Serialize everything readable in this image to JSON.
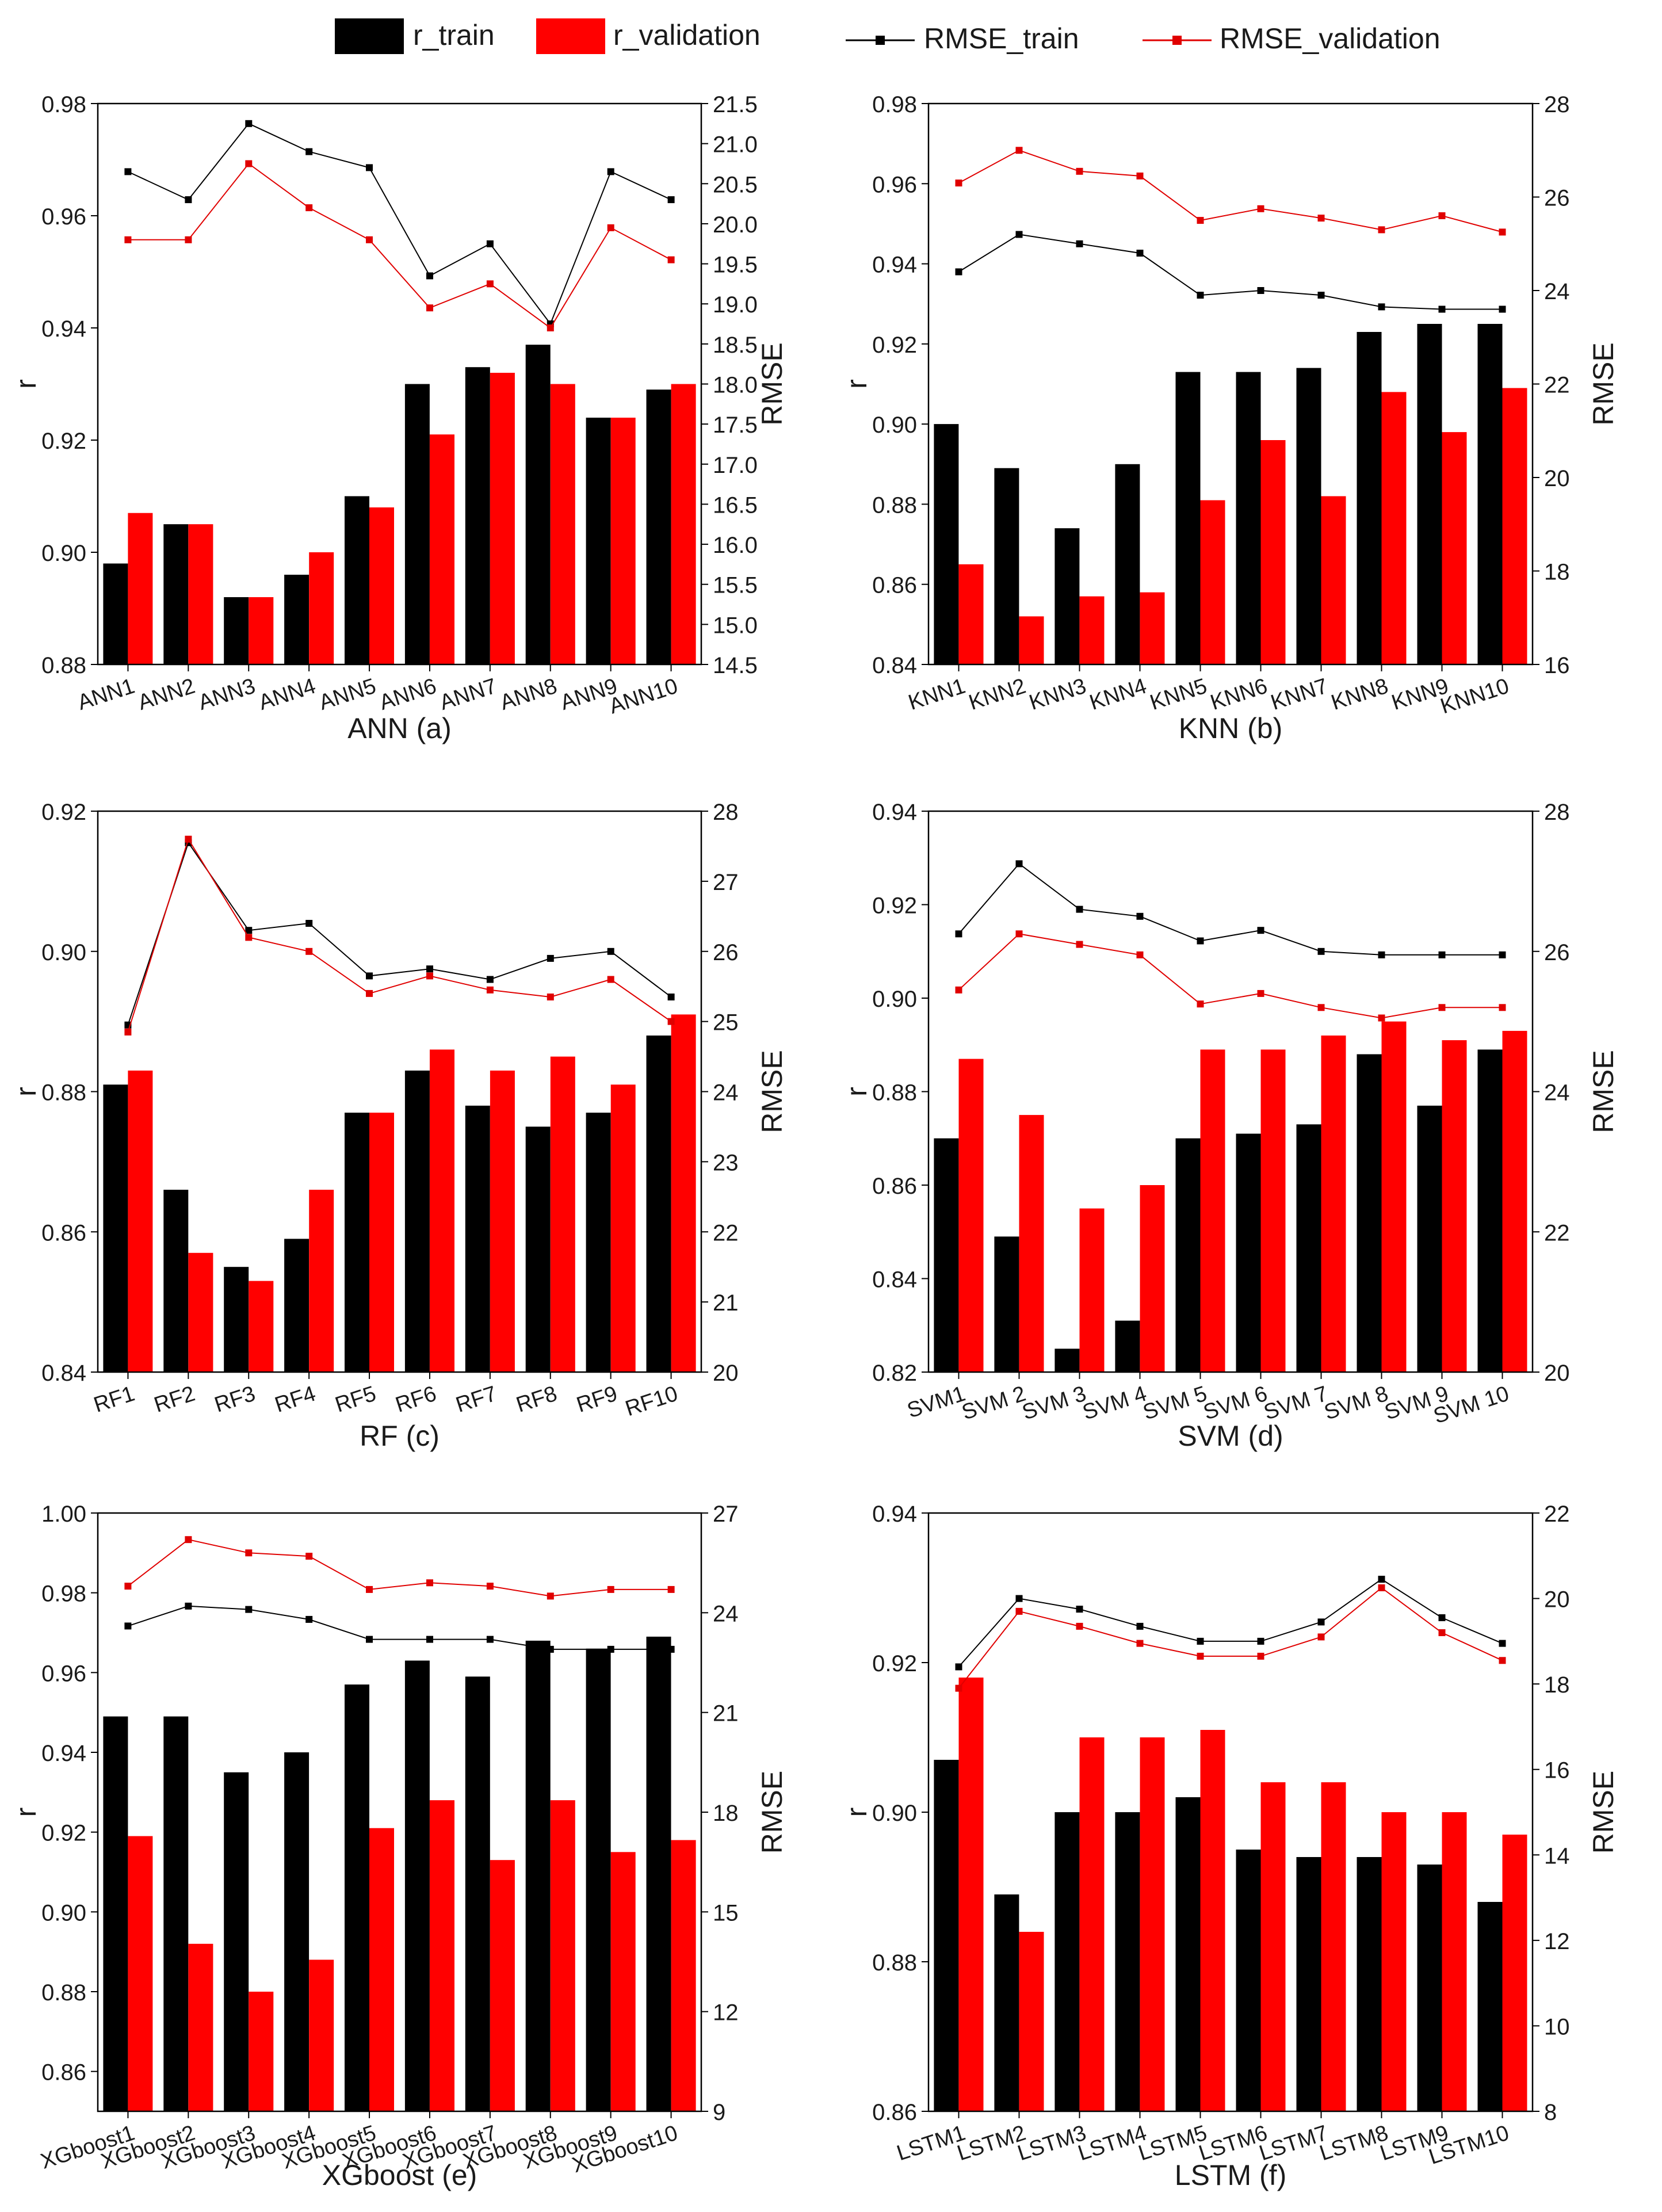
{
  "legend": {
    "items": [
      {
        "label": "r_train",
        "kind": "bar",
        "color": "#000000"
      },
      {
        "label": "r_validation",
        "kind": "bar",
        "color": "#ff0000"
      },
      {
        "label": "RMSE_train",
        "kind": "line",
        "color": "#000000"
      },
      {
        "label": "RMSE_validation",
        "kind": "line",
        "color": "#e00000"
      }
    ]
  },
  "colors": {
    "train": "#000000",
    "validation": "#ff0000",
    "rmse_train": "#000000",
    "rmse_validation": "#e00000"
  },
  "chart_data": [
    {
      "type": "bar",
      "title": "ANN (a)",
      "ylabel": "r",
      "y2label": "RMSE",
      "categories": [
        "ANN1",
        "ANN2",
        "ANN3",
        "ANN4",
        "ANN5",
        "ANN6",
        "ANN7",
        "ANN8",
        "ANN9",
        "ANN10"
      ],
      "ylim": [
        0.88,
        0.98
      ],
      "yticks": [
        0.88,
        0.9,
        0.92,
        0.94,
        0.96,
        0.98
      ],
      "ytick_labels": [
        "0.88",
        "0.90",
        "0.92",
        "0.94",
        "0.96",
        "0.98"
      ],
      "y2lim": [
        14.5,
        21.5
      ],
      "y2ticks": [
        14.5,
        15.0,
        15.5,
        16.0,
        16.5,
        17.0,
        17.5,
        18.0,
        18.5,
        19.0,
        19.5,
        20.0,
        20.5,
        21.0,
        21.5
      ],
      "y2tick_labels": [
        "14.5",
        "15.0",
        "15.5",
        "16.0",
        "16.5",
        "17.0",
        "17.5",
        "18.0",
        "18.5",
        "19.0",
        "19.5",
        "20.0",
        "20.5",
        "21.0",
        "21.5"
      ],
      "series": [
        {
          "name": "r_train",
          "kind": "bar",
          "values": [
            0.898,
            0.905,
            0.892,
            0.896,
            0.91,
            0.93,
            0.933,
            0.937,
            0.924,
            0.929
          ]
        },
        {
          "name": "r_validation",
          "kind": "bar",
          "values": [
            0.907,
            0.905,
            0.892,
            0.9,
            0.908,
            0.921,
            0.932,
            0.93,
            0.924,
            0.93
          ]
        },
        {
          "name": "RMSE_train",
          "kind": "line",
          "axis": "right",
          "values": [
            20.65,
            20.3,
            21.25,
            20.9,
            20.7,
            19.35,
            19.75,
            18.75,
            20.65,
            20.3
          ]
        },
        {
          "name": "RMSE_validation",
          "kind": "line",
          "axis": "right",
          "values": [
            19.8,
            19.8,
            20.75,
            20.2,
            19.8,
            18.95,
            19.25,
            18.7,
            19.95,
            19.55
          ]
        }
      ]
    },
    {
      "type": "bar",
      "title": "KNN (b)",
      "ylabel": "r",
      "y2label": "RMSE",
      "categories": [
        "KNN1",
        "KNN2",
        "KNN3",
        "KNN4",
        "KNN5",
        "KNN6",
        "KNN7",
        "KNN8",
        "KNN9",
        "KNN10"
      ],
      "ylim": [
        0.84,
        0.98
      ],
      "yticks": [
        0.84,
        0.86,
        0.88,
        0.9,
        0.92,
        0.94,
        0.96,
        0.98
      ],
      "ytick_labels": [
        "0.84",
        "0.86",
        "0.88",
        "0.90",
        "0.92",
        "0.94",
        "0.96",
        "0.98"
      ],
      "y2lim": [
        16,
        28
      ],
      "y2ticks": [
        16,
        18,
        20,
        22,
        24,
        26,
        28
      ],
      "y2tick_labels": [
        "16",
        "18",
        "20",
        "22",
        "24",
        "26",
        "28"
      ],
      "series": [
        {
          "name": "r_train",
          "kind": "bar",
          "values": [
            0.9,
            0.889,
            0.874,
            0.89,
            0.913,
            0.913,
            0.914,
            0.923,
            0.925,
            0.925
          ]
        },
        {
          "name": "r_validation",
          "kind": "bar",
          "values": [
            0.865,
            0.852,
            0.857,
            0.858,
            0.881,
            0.896,
            0.882,
            0.908,
            0.898,
            0.909
          ]
        },
        {
          "name": "RMSE_train",
          "kind": "line",
          "axis": "right",
          "values": [
            24.4,
            25.2,
            25.0,
            24.8,
            23.9,
            24.0,
            23.9,
            23.65,
            23.6,
            23.6
          ]
        },
        {
          "name": "RMSE_validation",
          "kind": "line",
          "axis": "right",
          "values": [
            26.3,
            27.0,
            26.55,
            26.45,
            25.5,
            25.75,
            25.55,
            25.3,
            25.6,
            25.25
          ]
        }
      ]
    },
    {
      "type": "bar",
      "title": "RF (c)",
      "ylabel": "r",
      "y2label": "RMSE",
      "categories": [
        "RF1",
        "RF2",
        "RF3",
        "RF4",
        "RF5",
        "RF6",
        "RF7",
        "RF8",
        "RF9",
        "RF10"
      ],
      "ylim": [
        0.84,
        0.92
      ],
      "yticks": [
        0.84,
        0.86,
        0.88,
        0.9,
        0.92
      ],
      "ytick_labels": [
        "0.84",
        "0.86",
        "0.88",
        "0.90",
        "0.92"
      ],
      "y2lim": [
        20,
        28
      ],
      "y2ticks": [
        20,
        21,
        22,
        23,
        24,
        25,
        26,
        27,
        28
      ],
      "y2tick_labels": [
        "20",
        "21",
        "22",
        "23",
        "24",
        "25",
        "26",
        "27",
        "28"
      ],
      "series": [
        {
          "name": "r_train",
          "kind": "bar",
          "values": [
            0.881,
            0.866,
            0.855,
            0.859,
            0.877,
            0.883,
            0.878,
            0.875,
            0.877,
            0.888
          ]
        },
        {
          "name": "r_validation",
          "kind": "bar",
          "values": [
            0.883,
            0.857,
            0.853,
            0.866,
            0.877,
            0.886,
            0.883,
            0.885,
            0.881,
            0.891
          ]
        },
        {
          "name": "RMSE_train",
          "kind": "line",
          "axis": "right",
          "values": [
            24.95,
            27.55,
            26.3,
            26.4,
            25.65,
            25.75,
            25.6,
            25.9,
            26.0,
            25.35
          ]
        },
        {
          "name": "RMSE_validation",
          "kind": "line",
          "axis": "right",
          "values": [
            24.85,
            27.6,
            26.2,
            26.0,
            25.4,
            25.65,
            25.45,
            25.35,
            25.6,
            25.0
          ]
        }
      ]
    },
    {
      "type": "bar",
      "title": "SVM (d)",
      "ylabel": "r",
      "y2label": "RMSE",
      "categories": [
        "SVM1",
        "SVM 2",
        "SVM 3",
        "SVM 4",
        "SVM 5",
        "SVM 6",
        "SVM 7",
        "SVM 8",
        "SVM 9",
        "SVM 10"
      ],
      "ylim": [
        0.82,
        0.94
      ],
      "yticks": [
        0.82,
        0.84,
        0.86,
        0.88,
        0.9,
        0.92,
        0.94
      ],
      "ytick_labels": [
        "0.82",
        "0.84",
        "0.86",
        "0.88",
        "0.90",
        "0.92",
        "0.94"
      ],
      "y2lim": [
        20,
        28
      ],
      "y2ticks": [
        20,
        22,
        24,
        26,
        28
      ],
      "y2tick_labels": [
        "20",
        "22",
        "24",
        "26",
        "28"
      ],
      "series": [
        {
          "name": "r_train",
          "kind": "bar",
          "values": [
            0.87,
            0.849,
            0.825,
            0.831,
            0.87,
            0.871,
            0.873,
            0.888,
            0.877,
            0.889
          ]
        },
        {
          "name": "r_validation",
          "kind": "bar",
          "values": [
            0.887,
            0.875,
            0.855,
            0.86,
            0.889,
            0.889,
            0.892,
            0.895,
            0.891,
            0.893
          ]
        },
        {
          "name": "RMSE_train",
          "kind": "line",
          "axis": "right",
          "values": [
            26.25,
            27.25,
            26.6,
            26.5,
            26.15,
            26.3,
            26.0,
            25.95,
            25.95,
            25.95
          ]
        },
        {
          "name": "RMSE_validation",
          "kind": "line",
          "axis": "right",
          "values": [
            25.45,
            26.25,
            26.1,
            25.95,
            25.25,
            25.4,
            25.2,
            25.05,
            25.2,
            25.2
          ]
        }
      ]
    },
    {
      "type": "bar",
      "title": "XGboost (e)",
      "ylabel": "r",
      "y2label": "RMSE",
      "categories": [
        "XGboost1",
        "XGboost2",
        "XGboost3",
        "XGboost4",
        "XGboost5",
        "XGboost6",
        "XGboost7",
        "XGboost8",
        "XGboost9",
        "XGboost10"
      ],
      "ylim": [
        0.85,
        1.0
      ],
      "yticks": [
        0.86,
        0.88,
        0.9,
        0.92,
        0.94,
        0.96,
        0.98,
        1.0
      ],
      "ytick_labels": [
        "0.86",
        "0.88",
        "0.90",
        "0.92",
        "0.94",
        "0.96",
        "0.98",
        "1.00"
      ],
      "y2lim": [
        9,
        27
      ],
      "y2ticks": [
        9,
        12,
        15,
        18,
        21,
        24,
        27
      ],
      "y2tick_labels": [
        "9",
        "12",
        "15",
        "18",
        "21",
        "24",
        "27"
      ],
      "series": [
        {
          "name": "r_train",
          "kind": "bar",
          "values": [
            0.949,
            0.949,
            0.935,
            0.94,
            0.957,
            0.963,
            0.959,
            0.968,
            0.966,
            0.969
          ]
        },
        {
          "name": "r_validation",
          "kind": "bar",
          "values": [
            0.919,
            0.892,
            0.88,
            0.888,
            0.921,
            0.928,
            0.913,
            0.928,
            0.915,
            0.918
          ]
        },
        {
          "name": "RMSE_train",
          "kind": "line",
          "axis": "right",
          "values": [
            23.6,
            24.2,
            24.1,
            23.8,
            23.2,
            23.2,
            23.2,
            22.9,
            22.9,
            22.9
          ]
        },
        {
          "name": "RMSE_validation",
          "kind": "line",
          "axis": "right",
          "values": [
            24.8,
            26.2,
            25.8,
            25.7,
            24.7,
            24.9,
            24.8,
            24.5,
            24.7,
            24.7
          ]
        }
      ]
    },
    {
      "type": "bar",
      "title": "LSTM (f)",
      "ylabel": "r",
      "y2label": "RMSE",
      "categories": [
        "LSTM1",
        "LSTM2",
        "LSTM3",
        "LSTM4",
        "LSTM5",
        "LSTM6",
        "LSTM7",
        "LSTM8",
        "LSTM9",
        "LSTM10"
      ],
      "ylim": [
        0.86,
        0.94
      ],
      "yticks": [
        0.86,
        0.88,
        0.9,
        0.92,
        0.94
      ],
      "ytick_labels": [
        "0.86",
        "0.88",
        "0.90",
        "0.92",
        "0.94"
      ],
      "y2lim": [
        8,
        22
      ],
      "y2ticks": [
        8,
        10,
        12,
        14,
        16,
        18,
        20,
        22
      ],
      "y2tick_labels": [
        "8",
        "10",
        "12",
        "14",
        "16",
        "18",
        "20",
        "22"
      ],
      "series": [
        {
          "name": "r_train",
          "kind": "bar",
          "values": [
            0.907,
            0.889,
            0.9,
            0.9,
            0.902,
            0.895,
            0.894,
            0.894,
            0.893,
            0.888
          ]
        },
        {
          "name": "r_validation",
          "kind": "bar",
          "values": [
            0.918,
            0.884,
            0.91,
            0.91,
            0.911,
            0.904,
            0.904,
            0.9,
            0.9,
            0.897
          ]
        },
        {
          "name": "RMSE_train",
          "kind": "line",
          "axis": "right",
          "values": [
            18.4,
            20.0,
            19.75,
            19.35,
            19.0,
            19.0,
            19.45,
            20.45,
            19.55,
            18.95
          ]
        },
        {
          "name": "RMSE_validation",
          "kind": "line",
          "axis": "right",
          "values": [
            17.9,
            19.7,
            19.35,
            18.95,
            18.65,
            18.65,
            19.1,
            20.25,
            19.2,
            18.55
          ]
        }
      ]
    }
  ]
}
